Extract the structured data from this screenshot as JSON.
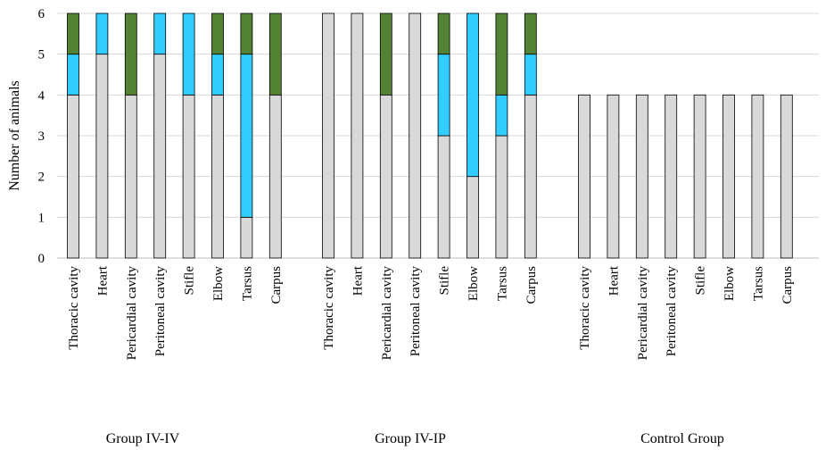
{
  "chart_data": {
    "type": "bar",
    "stacked": true,
    "ylabel": "Number of animals",
    "ylim": [
      0,
      6
    ],
    "yticks": [
      0,
      1,
      2,
      3,
      4,
      5,
      6
    ],
    "grid": true,
    "segment_colors": [
      "#d9d9d9",
      "#33ccff",
      "#548235"
    ],
    "groups": [
      {
        "name": "Group IV-IV",
        "categories": [
          "Thoracic cavity",
          "Heart",
          "Pericardial cavity",
          "Peritoneal cavity",
          "Stifle",
          "Elbow",
          "Tarsus",
          "Carpus"
        ],
        "stacks": [
          [
            4,
            1,
            1
          ],
          [
            5,
            1,
            0
          ],
          [
            4,
            0,
            2
          ],
          [
            5,
            1,
            0
          ],
          [
            4,
            2,
            0
          ],
          [
            4,
            1,
            1
          ],
          [
            1,
            4,
            1
          ],
          [
            4,
            0,
            2
          ]
        ]
      },
      {
        "name": "Group IV-IP",
        "categories": [
          "Thoracic cavity",
          "Heart",
          "Pericardial cavity",
          "Peritoneal cavity",
          "Stifle",
          "Elbow",
          "Tarsus",
          "Carpus"
        ],
        "stacks": [
          [
            6,
            0,
            0
          ],
          [
            6,
            0,
            0
          ],
          [
            4,
            0,
            2
          ],
          [
            6,
            0,
            0
          ],
          [
            3,
            2,
            1
          ],
          [
            2,
            4,
            0
          ],
          [
            3,
            1,
            2
          ],
          [
            4,
            1,
            1
          ]
        ]
      },
      {
        "name": "Control Group",
        "categories": [
          "Thoracic cavity",
          "Heart",
          "Pericardial cavity",
          "Peritoneal cavity",
          "Stifle",
          "Elbow",
          "Tarsus",
          "Carpus"
        ],
        "stacks": [
          [
            4,
            0,
            0
          ],
          [
            4,
            0,
            0
          ],
          [
            4,
            0,
            0
          ],
          [
            4,
            0,
            0
          ],
          [
            4,
            0,
            0
          ],
          [
            4,
            0,
            0
          ],
          [
            4,
            0,
            0
          ],
          [
            4,
            0,
            0
          ]
        ]
      }
    ]
  }
}
